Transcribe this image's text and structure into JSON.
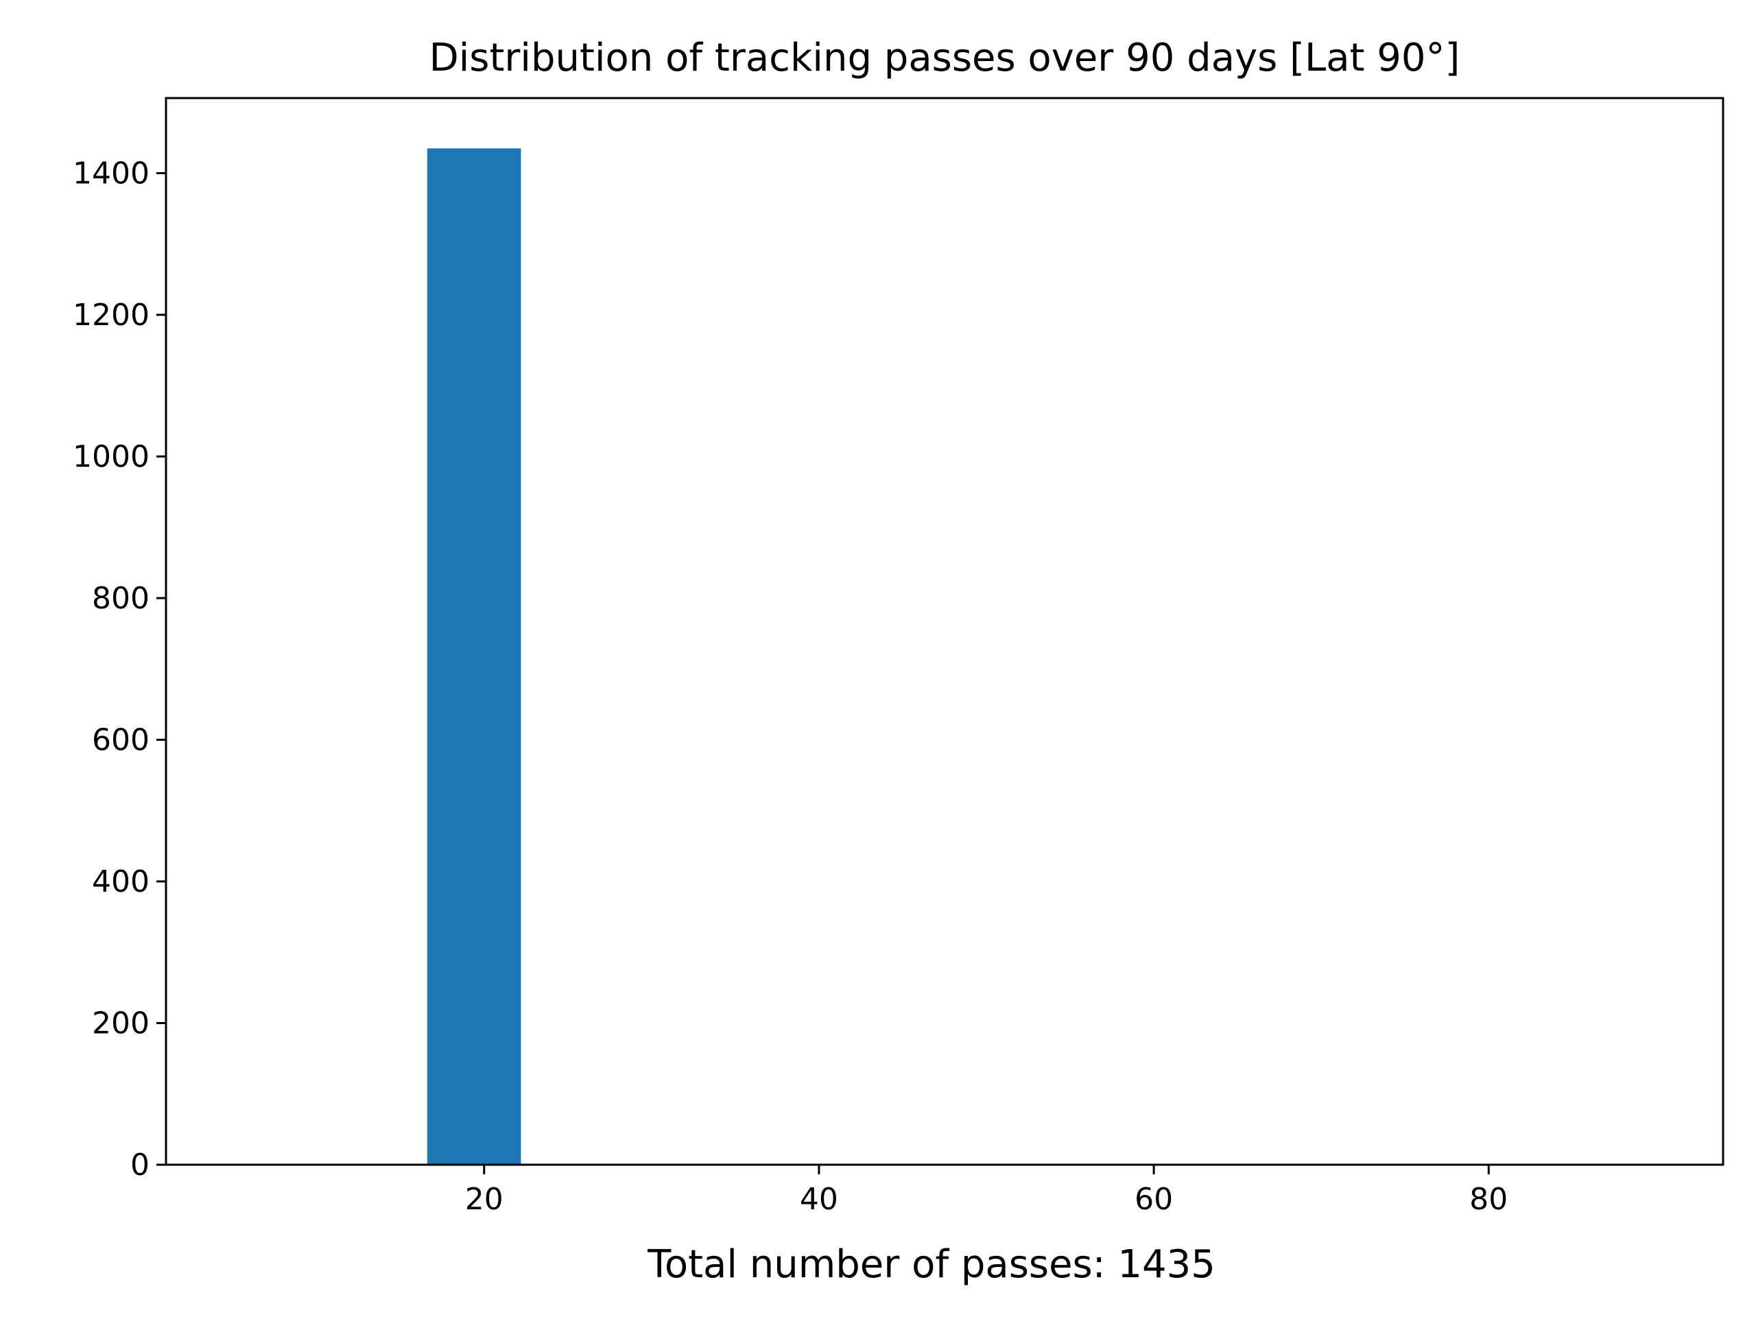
{
  "chart_data": {
    "type": "bar",
    "title": "Distribution of tracking passes over 90 days [Lat 90°]",
    "xlabel": "Total number of passes: 1435",
    "ylabel": "",
    "xlim": [
      1,
      94
    ],
    "ylim": [
      0,
      1506
    ],
    "x_ticks": [
      20,
      40,
      60,
      80
    ],
    "y_ticks": [
      0,
      200,
      400,
      600,
      800,
      1000,
      1200,
      1400
    ],
    "grid": false,
    "bins": [
      {
        "x_start": 16.6,
        "x_end": 22.2,
        "value": 1435
      }
    ],
    "bar_color": "#1f77b4"
  }
}
